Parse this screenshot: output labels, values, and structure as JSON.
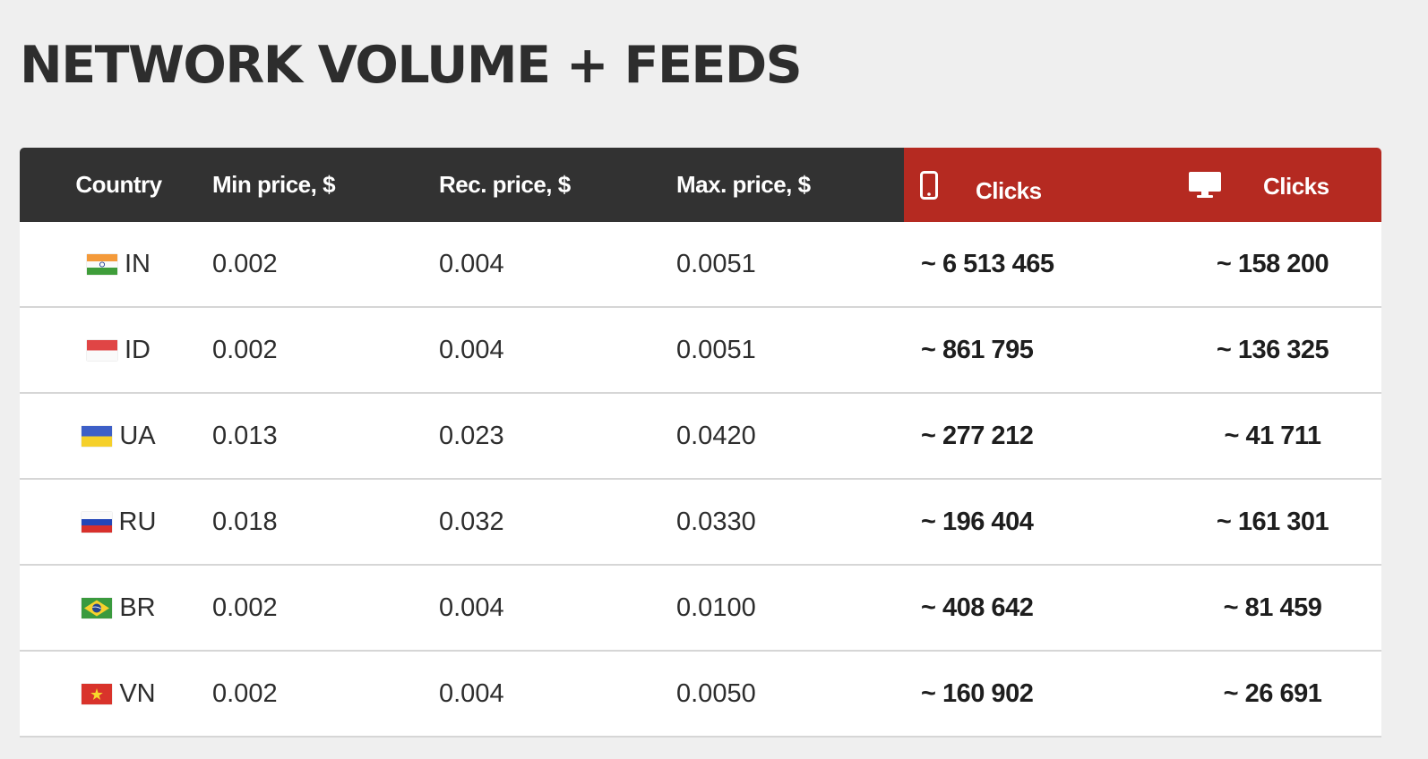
{
  "title": "NETWORK VOLUME + FEEDS",
  "table": {
    "headers": {
      "country": "Country",
      "min_price": "Min price, $",
      "rec_price": "Rec. price, $",
      "max_price": "Max. price, $",
      "mobile_clicks": "Clicks",
      "desktop_clicks": "Clicks"
    },
    "header_icons": {
      "mobile": "mobile-phone-icon",
      "desktop": "desktop-monitor-icon"
    },
    "colors": {
      "header_dark": "#323232",
      "header_red": "#b52a21",
      "background": "#efefef"
    },
    "rows": [
      {
        "code": "IN",
        "flag": "india-flag-icon",
        "min": "0.002",
        "rec": "0.004",
        "max": "0.0051",
        "mobile": "~ 6 513 465",
        "desktop": "~ 158 200"
      },
      {
        "code": "ID",
        "flag": "indonesia-flag-icon",
        "min": "0.002",
        "rec": "0.004",
        "max": "0.0051",
        "mobile": "~ 861 795",
        "desktop": "~ 136 325"
      },
      {
        "code": "UA",
        "flag": "ukraine-flag-icon",
        "min": "0.013",
        "rec": "0.023",
        "max": "0.0420",
        "mobile": "~ 277 212",
        "desktop": "~ 41 711"
      },
      {
        "code": "RU",
        "flag": "russia-flag-icon",
        "min": "0.018",
        "rec": "0.032",
        "max": "0.0330",
        "mobile": "~ 196 404",
        "desktop": "~ 161 301"
      },
      {
        "code": "BR",
        "flag": "brazil-flag-icon",
        "min": "0.002",
        "rec": "0.004",
        "max": "0.0100",
        "mobile": "~ 408 642",
        "desktop": "~ 81 459"
      },
      {
        "code": "VN",
        "flag": "vietnam-flag-icon",
        "min": "0.002",
        "rec": "0.004",
        "max": "0.0050",
        "mobile": "~ 160 902",
        "desktop": "~ 26 691"
      }
    ]
  }
}
